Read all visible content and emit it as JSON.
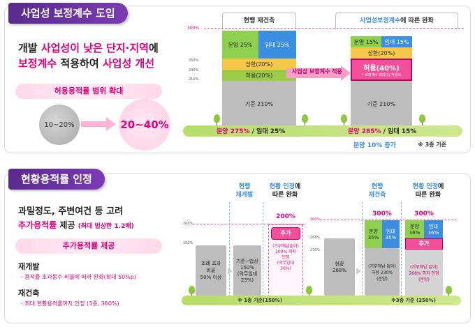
{
  "section1": {
    "title": "사업성 보정계수 도입",
    "headline_line1_a": "개발 ",
    "headline_line1_b": "사업성이 낮은 단지·지역",
    "headline_line1_c": "에",
    "headline_line2_a": "보정계수",
    "headline_line2_b": " 적용하여 ",
    "headline_line2_c": "사업성 개선",
    "range_header": "허용용적률 범위 확대",
    "range_from": "10~20%",
    "range_to": "20~40%",
    "chart": {
      "col_current_header": "현행  재건축",
      "col_new_header_a": "사업성보정계수",
      "col_new_header_b": "에 따른 완화",
      "y_labels": [
        "300%",
        "250%",
        "230%",
        "210%"
      ],
      "current": {
        "sale": "분양 25%",
        "rent": "임대 25%",
        "upper": "상한(20%)",
        "allow": "허용(20%)",
        "base": "기준 210%"
      },
      "new": {
        "sale": "분양 15%",
        "rent": "임대 15%",
        "upper": "상한(20%)",
        "allow": "허용(40%)",
        "allow_note": "* 보정계수 최대(2) 적용시",
        "base": "기준 210%"
      },
      "apply_label": "사업성 보정계수 적용",
      "ground_current_a": "분양 275%",
      "ground_current_b": " / 임대 25%",
      "ground_new_a": "분양 285%",
      "ground_new_b": " / 임대 15%",
      "increase_note": "분양 10% 증가",
      "class_note": "※ 3종 기준"
    },
    "colors": {
      "blue": "#3b8ee0",
      "green": "#8fd14f",
      "yellow": "#f7c948",
      "olive": "#9ccb47",
      "gray": "#bdbdbd",
      "pink": "#e0007a",
      "purple": "#6a2fa0"
    }
  },
  "section2": {
    "title": "현황용적률 인정",
    "headline_line1": "과밀정도, 주변여건 등 고려",
    "headline_line2_a": "추가용적률",
    "headline_line2_b": " 제공 ",
    "headline_line2_c": "(최대 법상한 1.2배)",
    "extra_header": "추가용적률 제공",
    "redev_title": "재개발",
    "redev_item": "- 용적률 초과동수 비율에 따라 완화(최대 50%p)",
    "recon_title": "재건축",
    "recon_item": "- 최대 현황용적률까지 인정 (3종, 360%)",
    "chart": {
      "left_y_labels": [
        "200%",
        "150%"
      ],
      "right_y_labels": [
        "300%",
        "268%",
        "230%"
      ],
      "hdr_redev_current": "현행\n재개발",
      "hdr_redev_new_a": "현황 인정",
      "hdr_redev_new_b": "에\n따른 완화",
      "hdr_recon_current": "현행\n재건축",
      "hdr_recon_new_a": "현황 인정",
      "hdr_recon_new_b": "에\n따른 완화",
      "b1": "조례 초과\n비율\n50% 이상",
      "b2": "기준~법상\n150%\n(의무임대\n23%)",
      "b3_top": "200%",
      "b3_add": "추가",
      "b3_text": "(기부채납없이)\n200% 까지\n인정\n(의무임대\n30%)",
      "b4": "현황\n268%",
      "b5_top": "300%",
      "b5_sale": "분양\n35%",
      "b5_rent": "임대\n35%",
      "b5_text": "(기부채납 없이)\n허용 230%\n(분양)",
      "b6_top": "300%",
      "b6_sale": "분양\n16%",
      "b6_rent": "임대\n16%",
      "b6_add": "추가",
      "b6_text": "(기부채납 없이)\n268% 까지 인정\n(분양)",
      "ground_left": "※ 1종 기준(150%)",
      "ground_right": "※3종 기준 (250%)"
    }
  }
}
